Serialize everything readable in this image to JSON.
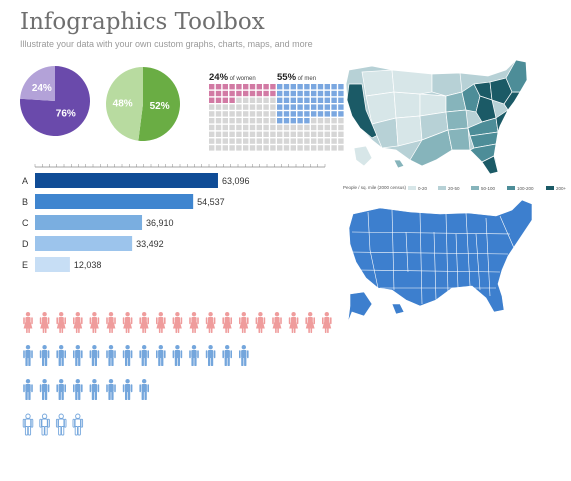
{
  "header": {
    "title": "Infographics Toolbox",
    "subtitle": "Illustrate your data with your own custom graphs, charts, maps, and more"
  },
  "colors": {
    "pie1_big": "#6a4aab",
    "pie1_small": "#b3a2d8",
    "pie2_big": "#6aad44",
    "pie2_small": "#b8dba0",
    "waffle_women": "#d27aa4",
    "waffle_men": "#7aa7e0",
    "waffle_empty": "#d6d6d6",
    "bar_colors": [
      "#0f4c96",
      "#3f85cf",
      "#7aaee0",
      "#9cc4ec",
      "#c7def5"
    ],
    "person_women": "#ef9c9c",
    "person_men": "#74a6dc",
    "person_outline": "#74a6dc",
    "map_blue": "#3d7fce",
    "map_choropleth": [
      "#d7e6e8",
      "#b7d1d6",
      "#86b4bb",
      "#4d8d98",
      "#1b5a66"
    ]
  },
  "pies": [
    {
      "big": 76,
      "small": 24,
      "big_label": "76%",
      "small_label": "24%"
    },
    {
      "big": 52,
      "small": 48,
      "big_label": "52%",
      "small_label": "48%"
    }
  ],
  "waffles": [
    {
      "pct_label": "24%",
      "suffix": " of women",
      "filled": 24,
      "color": "#d27aa4"
    },
    {
      "pct_label": "55%",
      "suffix": " of men",
      "filled": 55,
      "color": "#7aa7e0"
    }
  ],
  "chart_data": [
    {
      "type": "pie",
      "values": [
        76,
        24
      ],
      "labels": [
        "76%",
        "24%"
      ]
    },
    {
      "type": "pie",
      "values": [
        52,
        48
      ],
      "labels": [
        "52%",
        "48%"
      ]
    },
    {
      "type": "bar",
      "categories": [
        "A",
        "B",
        "C",
        "D",
        "E"
      ],
      "values": [
        63096,
        54537,
        36910,
        33492,
        12038
      ],
      "value_labels": [
        "63,096",
        "54,537",
        "36,910",
        "33,492",
        "12,038"
      ],
      "orientation": "horizontal",
      "xlim": [
        0,
        100000
      ]
    }
  ],
  "people": {
    "row1": 19,
    "row2": 14,
    "row3": 8,
    "row4": 4
  },
  "choropleth_legend": {
    "caption": "People / sq. mile (2000 census)",
    "items": [
      "0-20",
      "20-50",
      "50-100",
      "100-200",
      "200+"
    ]
  }
}
